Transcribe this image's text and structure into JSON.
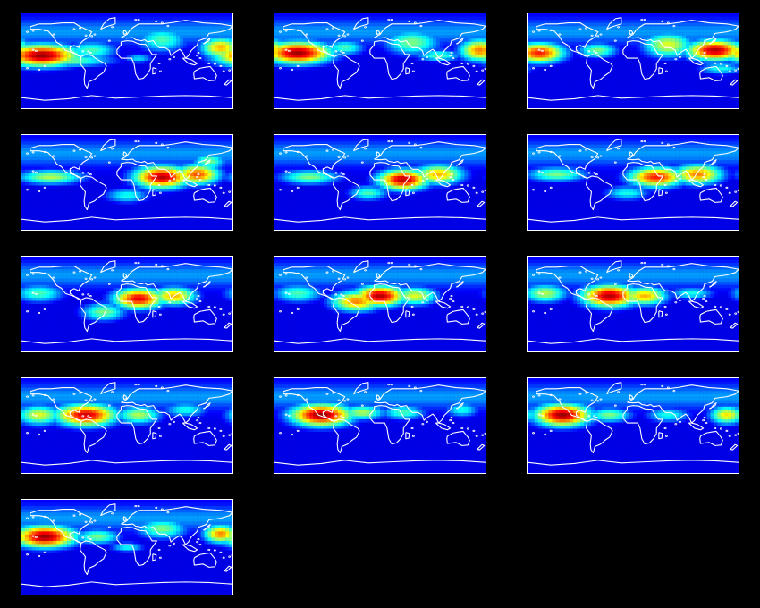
{
  "figure": {
    "background": "#000000",
    "coastline_color": "#ffffff",
    "colormap": "jet",
    "grid": {
      "rows": 5,
      "cols": 3
    }
  },
  "panels": [
    {
      "blobs": [
        {
          "lon": -145,
          "lat": 10,
          "rlon": 65,
          "rlat": 22,
          "v": 0.98
        },
        {
          "lon": -60,
          "lat": 20,
          "rlon": 45,
          "rlat": 18,
          "v": 0.45
        },
        {
          "lon": 60,
          "lat": 40,
          "rlon": 45,
          "rlat": 25,
          "v": 0.45
        },
        {
          "lon": 160,
          "lat": 25,
          "rlon": 35,
          "rlat": 20,
          "v": 0.7
        },
        {
          "lon": -100,
          "lat": 0,
          "rlon": 80,
          "rlat": 12,
          "v": 0.5
        },
        {
          "lon": 20,
          "lat": 5,
          "rlon": 25,
          "rlat": 10,
          "v": 0.35
        }
      ]
    },
    {
      "blobs": [
        {
          "lon": -140,
          "lat": 15,
          "rlon": 60,
          "rlat": 22,
          "v": 0.97
        },
        {
          "lon": 170,
          "lat": 20,
          "rlon": 35,
          "rlat": 22,
          "v": 0.75
        },
        {
          "lon": 55,
          "lat": 35,
          "rlon": 50,
          "rlat": 25,
          "v": 0.5
        },
        {
          "lon": -60,
          "lat": 25,
          "rlon": 35,
          "rlat": 15,
          "v": 0.45
        },
        {
          "lon": 100,
          "lat": 10,
          "rlon": 40,
          "rlat": 12,
          "v": 0.45
        }
      ]
    },
    {
      "blobs": [
        {
          "lon": -160,
          "lat": 15,
          "rlon": 45,
          "rlat": 20,
          "v": 0.85
        },
        {
          "lon": 140,
          "lat": 20,
          "rlon": 50,
          "rlat": 20,
          "v": 0.95
        },
        {
          "lon": 60,
          "lat": 30,
          "rlon": 45,
          "rlat": 25,
          "v": 0.6
        },
        {
          "lon": -60,
          "lat": 20,
          "rlon": 35,
          "rlat": 15,
          "v": 0.5
        },
        {
          "lon": 150,
          "lat": -15,
          "rlon": 40,
          "rlat": 12,
          "v": 0.4
        }
      ]
    },
    {
      "blobs": [
        {
          "lon": 60,
          "lat": 10,
          "rlon": 50,
          "rlat": 22,
          "v": 0.95
        },
        {
          "lon": 120,
          "lat": 15,
          "rlon": 40,
          "rlat": 20,
          "v": 0.8
        },
        {
          "lon": -130,
          "lat": 10,
          "rlon": 60,
          "rlat": 15,
          "v": 0.55
        },
        {
          "lon": 0,
          "lat": -25,
          "rlon": 40,
          "rlat": 15,
          "v": 0.4
        },
        {
          "lon": 140,
          "lat": 40,
          "rlon": 30,
          "rlat": 15,
          "v": 0.5
        }
      ]
    },
    {
      "blobs": [
        {
          "lon": 40,
          "lat": 5,
          "rlon": 45,
          "rlat": 20,
          "v": 0.95
        },
        {
          "lon": 100,
          "lat": 15,
          "rlon": 45,
          "rlat": 20,
          "v": 0.7
        },
        {
          "lon": -120,
          "lat": 10,
          "rlon": 55,
          "rlat": 15,
          "v": 0.5
        },
        {
          "lon": -20,
          "lat": -20,
          "rlon": 35,
          "rlat": 15,
          "v": 0.45
        }
      ]
    },
    {
      "blobs": [
        {
          "lon": 40,
          "lat": 10,
          "rlon": 50,
          "rlat": 20,
          "v": 0.85
        },
        {
          "lon": 110,
          "lat": 15,
          "rlon": 45,
          "rlat": 20,
          "v": 0.75
        },
        {
          "lon": -130,
          "lat": 15,
          "rlon": 55,
          "rlat": 15,
          "v": 0.5
        },
        {
          "lon": -10,
          "lat": -20,
          "rlon": 40,
          "rlat": 15,
          "v": 0.4
        }
      ]
    },
    {
      "blobs": [
        {
          "lon": 20,
          "lat": 10,
          "rlon": 45,
          "rlat": 20,
          "v": 0.9
        },
        {
          "lon": 80,
          "lat": 15,
          "rlon": 40,
          "rlat": 18,
          "v": 0.7
        },
        {
          "lon": -40,
          "lat": -15,
          "rlon": 40,
          "rlat": 18,
          "v": 0.5
        },
        {
          "lon": -150,
          "lat": 20,
          "rlon": 45,
          "rlat": 18,
          "v": 0.45
        }
      ]
    },
    {
      "blobs": [
        {
          "lon": 0,
          "lat": 15,
          "rlon": 45,
          "rlat": 20,
          "v": 0.95
        },
        {
          "lon": -40,
          "lat": 5,
          "rlon": 45,
          "rlat": 20,
          "v": 0.75
        },
        {
          "lon": 60,
          "lat": 15,
          "rlon": 40,
          "rlat": 18,
          "v": 0.6
        },
        {
          "lon": -140,
          "lat": 20,
          "rlon": 45,
          "rlat": 18,
          "v": 0.45
        }
      ]
    },
    {
      "blobs": [
        {
          "lon": -40,
          "lat": 15,
          "rlon": 50,
          "rlat": 22,
          "v": 0.95
        },
        {
          "lon": 20,
          "lat": 15,
          "rlon": 40,
          "rlat": 18,
          "v": 0.7
        },
        {
          "lon": -150,
          "lat": 20,
          "rlon": 40,
          "rlat": 18,
          "v": 0.55
        },
        {
          "lon": 100,
          "lat": 20,
          "rlon": 40,
          "rlat": 12,
          "v": 0.4
        }
      ]
    },
    {
      "blobs": [
        {
          "lon": -70,
          "lat": 20,
          "rlon": 55,
          "rlat": 22,
          "v": 0.92
        },
        {
          "lon": -150,
          "lat": 20,
          "rlon": 40,
          "rlat": 20,
          "v": 0.6
        },
        {
          "lon": 20,
          "lat": 20,
          "rlon": 40,
          "rlat": 18,
          "v": 0.55
        },
        {
          "lon": 100,
          "lat": 30,
          "rlon": 40,
          "rlat": 15,
          "v": 0.4
        }
      ]
    },
    {
      "blobs": [
        {
          "lon": -100,
          "lat": 20,
          "rlon": 55,
          "rlat": 22,
          "v": 0.98
        },
        {
          "lon": -30,
          "lat": 25,
          "rlon": 40,
          "rlat": 15,
          "v": 0.55
        },
        {
          "lon": 40,
          "lat": 25,
          "rlon": 40,
          "rlat": 15,
          "v": 0.45
        },
        {
          "lon": 140,
          "lat": 30,
          "rlon": 30,
          "rlat": 15,
          "v": 0.4
        }
      ]
    },
    {
      "blobs": [
        {
          "lon": -120,
          "lat": 20,
          "rlon": 50,
          "rlat": 22,
          "v": 0.98
        },
        {
          "lon": 160,
          "lat": 20,
          "rlon": 30,
          "rlat": 18,
          "v": 0.65
        },
        {
          "lon": -40,
          "lat": 20,
          "rlon": 40,
          "rlat": 15,
          "v": 0.5
        },
        {
          "lon": 60,
          "lat": 20,
          "rlon": 40,
          "rlat": 15,
          "v": 0.4
        }
      ]
    },
    {
      "blobs": [
        {
          "lon": -140,
          "lat": 20,
          "rlon": 55,
          "rlat": 22,
          "v": 0.98
        },
        {
          "lon": 160,
          "lat": 25,
          "rlon": 30,
          "rlat": 18,
          "v": 0.75
        },
        {
          "lon": -50,
          "lat": 20,
          "rlon": 40,
          "rlat": 15,
          "v": 0.5
        },
        {
          "lon": 60,
          "lat": 35,
          "rlon": 45,
          "rlat": 20,
          "v": 0.5
        },
        {
          "lon": 0,
          "lat": 0,
          "rlon": 30,
          "rlat": 10,
          "v": 0.4
        }
      ]
    }
  ]
}
